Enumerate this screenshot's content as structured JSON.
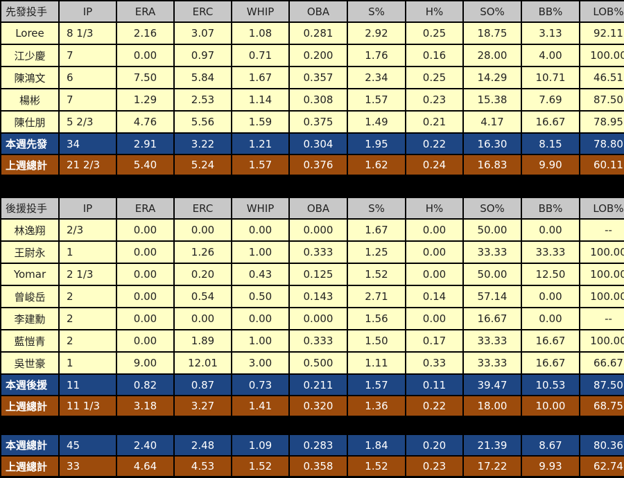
{
  "columns": [
    "IP",
    "ERA",
    "ERC",
    "WHIP",
    "OBA",
    "S%",
    "H%",
    "SO%",
    "BB%",
    "LOB%"
  ],
  "starters": {
    "header": "先發投手",
    "rows": [
      {
        "name": "Loree",
        "ip": "8 1/3",
        "stats": [
          "2.16",
          "3.07",
          "1.08",
          "0.281",
          "2.92",
          "0.25",
          "18.75",
          "3.13",
          "92.11"
        ]
      },
      {
        "name": "江少慶",
        "ip": "7",
        "stats": [
          "0.00",
          "0.97",
          "0.71",
          "0.200",
          "1.76",
          "0.16",
          "28.00",
          "4.00",
          "100.00"
        ]
      },
      {
        "name": "陳鴻文",
        "ip": "6",
        "stats": [
          "7.50",
          "5.84",
          "1.67",
          "0.357",
          "2.34",
          "0.25",
          "14.29",
          "10.71",
          "46.51"
        ]
      },
      {
        "name": "楊彬",
        "ip": "7",
        "stats": [
          "1.29",
          "2.53",
          "1.14",
          "0.308",
          "1.57",
          "0.23",
          "15.38",
          "7.69",
          "87.50"
        ]
      },
      {
        "name": "陳仕朋",
        "ip": "5 2/3",
        "stats": [
          "4.76",
          "5.56",
          "1.59",
          "0.375",
          "1.49",
          "0.21",
          "4.17",
          "16.67",
          "78.95"
        ]
      }
    ],
    "this_week": {
      "name": "本週先發",
      "ip": "34",
      "stats": [
        "2.91",
        "3.22",
        "1.21",
        "0.304",
        "1.95",
        "0.22",
        "16.30",
        "8.15",
        "78.80"
      ]
    },
    "last_week": {
      "name": "上週總計",
      "ip": "21 2/3",
      "stats": [
        "5.40",
        "5.24",
        "1.57",
        "0.376",
        "1.62",
        "0.24",
        "16.83",
        "9.90",
        "60.11"
      ]
    }
  },
  "relievers": {
    "header": "後援投手",
    "rows": [
      {
        "name": "林逸翔",
        "ip": "2/3",
        "stats": [
          "0.00",
          "0.00",
          "0.00",
          "0.000",
          "1.67",
          "0.00",
          "50.00",
          "0.00",
          "--"
        ]
      },
      {
        "name": "王尉永",
        "ip": "1",
        "stats": [
          "0.00",
          "1.26",
          "1.00",
          "0.333",
          "1.25",
          "0.00",
          "33.33",
          "33.33",
          "100.00"
        ]
      },
      {
        "name": "Yomar",
        "ip": "2 1/3",
        "stats": [
          "0.00",
          "0.20",
          "0.43",
          "0.125",
          "1.52",
          "0.00",
          "50.00",
          "12.50",
          "100.00"
        ]
      },
      {
        "name": "曾峻岳",
        "ip": "2",
        "stats": [
          "0.00",
          "0.54",
          "0.50",
          "0.143",
          "2.71",
          "0.14",
          "57.14",
          "0.00",
          "100.00"
        ]
      },
      {
        "name": "李建勳",
        "ip": "2",
        "stats": [
          "0.00",
          "0.00",
          "0.00",
          "0.000",
          "1.56",
          "0.00",
          "16.67",
          "0.00",
          "--"
        ]
      },
      {
        "name": "藍愷青",
        "ip": "2",
        "stats": [
          "0.00",
          "1.89",
          "1.00",
          "0.333",
          "1.50",
          "0.17",
          "33.33",
          "16.67",
          "100.00"
        ]
      },
      {
        "name": "吳世豪",
        "ip": "1",
        "stats": [
          "9.00",
          "12.01",
          "3.00",
          "0.500",
          "1.11",
          "0.33",
          "33.33",
          "16.67",
          "66.67"
        ]
      }
    ],
    "this_week": {
      "name": "本週後援",
      "ip": "11",
      "stats": [
        "0.82",
        "0.87",
        "0.73",
        "0.211",
        "1.57",
        "0.11",
        "39.47",
        "10.53",
        "87.50"
      ]
    },
    "last_week": {
      "name": "上週總計",
      "ip": "11 1/3",
      "stats": [
        "3.18",
        "3.27",
        "1.41",
        "0.320",
        "1.36",
        "0.22",
        "18.00",
        "10.00",
        "68.75"
      ]
    }
  },
  "totals": {
    "this_week": {
      "name": "本週總計",
      "ip": "45",
      "stats": [
        "2.40",
        "2.48",
        "1.09",
        "0.283",
        "1.84",
        "0.20",
        "21.39",
        "8.67",
        "80.36"
      ]
    },
    "last_week": {
      "name": "上週總計",
      "ip": "33",
      "stats": [
        "4.64",
        "4.53",
        "1.52",
        "0.358",
        "1.52",
        "0.23",
        "17.22",
        "9.93",
        "62.74"
      ]
    }
  },
  "colors": {
    "header_bg": "#c8c8c8",
    "row_bg": "#ffffc6",
    "this_week_bg": "#1e4683",
    "last_week_bg": "#9c4b0c",
    "separator": "#000000"
  }
}
